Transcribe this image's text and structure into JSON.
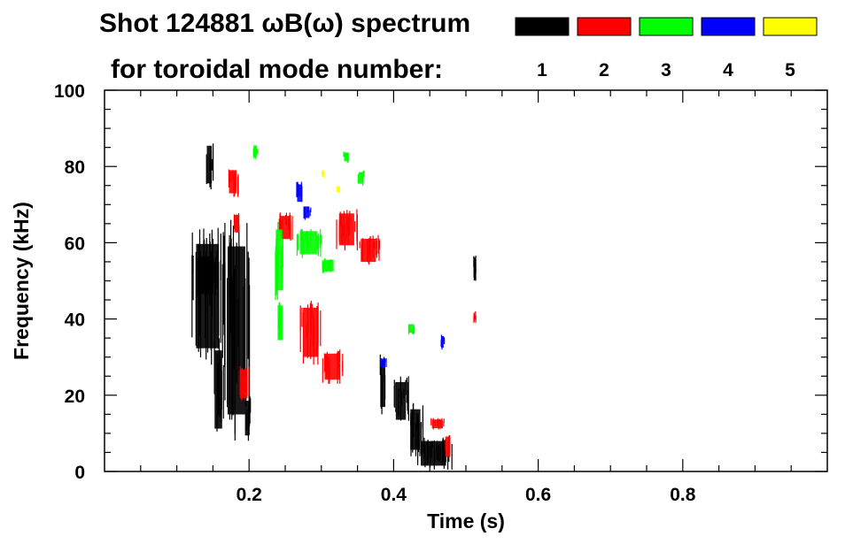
{
  "chart_data": {
    "type": "scatter",
    "title": "Shot 124881 ωB(ω) spectrum",
    "subtitle": "for toroidal mode number:",
    "xlabel": "Time (s)",
    "ylabel": "Frequency (kHz)",
    "xlim": [
      0.0,
      1.0
    ],
    "ylim": [
      0,
      100
    ],
    "x_ticks": [
      0.2,
      0.4,
      0.6,
      0.8
    ],
    "x_tick_labels": [
      "0.2",
      "0.4",
      "0.6",
      "0.8"
    ],
    "y_ticks": [
      0,
      20,
      40,
      60,
      80,
      100
    ],
    "y_tick_labels": [
      "0",
      "20",
      "40",
      "60",
      "80",
      "100"
    ],
    "grid": false,
    "legend_position": "top-right",
    "legend": [
      {
        "mode": "1",
        "color": "#000000"
      },
      {
        "mode": "2",
        "color": "#ff0000"
      },
      {
        "mode": "3",
        "color": "#00ff00"
      },
      {
        "mode": "4",
        "color": "#0000ff"
      },
      {
        "mode": "5",
        "color": "#ffff00"
      }
    ],
    "series": [
      {
        "mode": "1",
        "color": "#000000",
        "regions": [
          [
            0.12,
            0.165,
            28,
            64
          ],
          [
            0.125,
            0.155,
            45,
            58
          ],
          [
            0.15,
            0.165,
            8,
            35
          ],
          [
            0.14,
            0.15,
            74,
            87
          ],
          [
            0.165,
            0.2,
            8,
            66
          ],
          [
            0.193,
            0.202,
            8,
            20
          ],
          [
            0.38,
            0.39,
            15,
            31
          ],
          [
            0.4,
            0.42,
            12,
            25
          ],
          [
            0.42,
            0.44,
            4,
            18
          ],
          [
            0.43,
            0.48,
            0.5,
            9
          ],
          [
            0.51,
            0.513,
            50,
            57
          ]
        ]
      },
      {
        "mode": "2",
        "color": "#ff0000",
        "regions": [
          [
            0.17,
            0.185,
            72,
            80
          ],
          [
            0.178,
            0.188,
            62,
            68
          ],
          [
            0.185,
            0.2,
            18,
            28
          ],
          [
            0.24,
            0.26,
            60,
            68
          ],
          [
            0.27,
            0.3,
            28,
            45
          ],
          [
            0.3,
            0.33,
            23,
            32
          ],
          [
            0.32,
            0.35,
            58,
            69
          ],
          [
            0.35,
            0.38,
            54,
            62
          ],
          [
            0.45,
            0.47,
            11,
            14
          ],
          [
            0.47,
            0.48,
            3,
            10
          ],
          [
            0.51,
            0.513,
            39,
            42
          ]
        ]
      },
      {
        "mode": "3",
        "color": "#00ff00",
        "regions": [
          [
            0.235,
            0.248,
            45,
            66
          ],
          [
            0.238,
            0.248,
            33,
            45
          ],
          [
            0.265,
            0.3,
            56,
            64
          ],
          [
            0.3,
            0.32,
            52,
            56
          ],
          [
            0.33,
            0.34,
            81,
            84
          ],
          [
            0.35,
            0.36,
            75,
            79
          ],
          [
            0.42,
            0.43,
            36,
            39
          ],
          [
            0.205,
            0.212,
            82,
            86
          ]
        ]
      },
      {
        "mode": "4",
        "color": "#0000ff",
        "regions": [
          [
            0.265,
            0.275,
            70,
            76
          ],
          [
            0.275,
            0.285,
            66,
            70
          ],
          [
            0.465,
            0.47,
            32,
            36
          ],
          [
            0.38,
            0.39,
            27,
            30
          ]
        ]
      },
      {
        "mode": "5",
        "color": "#ffff00",
        "regions": [
          [
            0.3,
            0.305,
            77,
            79
          ],
          [
            0.32,
            0.325,
            73,
            75
          ]
        ]
      }
    ]
  }
}
